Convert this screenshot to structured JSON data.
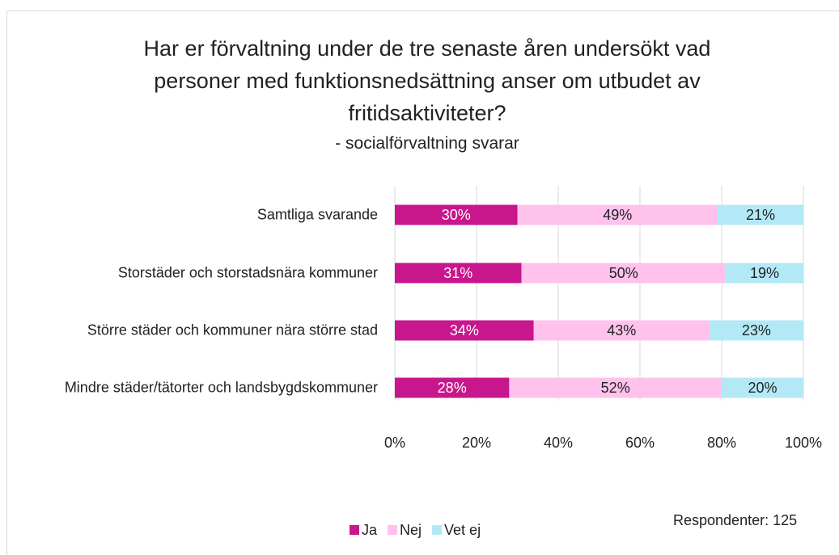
{
  "chart_data": {
    "type": "stacked_barh",
    "title": "Har er förvaltning under de tre senaste åren undersökt vad personer med funktionsnedsättning anser om utbudet av fritidsaktiviteter?",
    "subtitle": "- socialförvaltning svarar",
    "categories": [
      "Samtliga svarande",
      "Storstäder och storstadsnära kommuner",
      "Större städer och kommuner nära större stad",
      "Mindre städer/tätorter och landsbygdskommuner"
    ],
    "series": [
      {
        "name": "Ja",
        "color": "#c8168c",
        "label_color": "#ffffff",
        "values": [
          30,
          31,
          34,
          28
        ],
        "value_labels": [
          "30%",
          "31%",
          "34%",
          "28%"
        ]
      },
      {
        "name": "Nej",
        "color": "#ffc2ec",
        "label_color": "#222222",
        "values": [
          49,
          50,
          43,
          52
        ],
        "value_labels": [
          "49%",
          "50%",
          "43%",
          "52%"
        ]
      },
      {
        "name": "Vet ej",
        "color": "#b3e9f7",
        "label_color": "#222222",
        "values": [
          21,
          19,
          23,
          20
        ],
        "value_labels": [
          "21%",
          "19%",
          "23%",
          "20%"
        ]
      }
    ],
    "xlim": [
      0,
      100
    ],
    "xticks": [
      {
        "value": 0,
        "label": "0%"
      },
      {
        "value": 20,
        "label": "20%"
      },
      {
        "value": 40,
        "label": "40%"
      },
      {
        "value": 60,
        "label": "60%"
      },
      {
        "value": 80,
        "label": "80%"
      },
      {
        "value": 100,
        "label": "100%"
      }
    ],
    "grid": true,
    "legend": "bottom",
    "annotation": "Respondenter: 125"
  }
}
